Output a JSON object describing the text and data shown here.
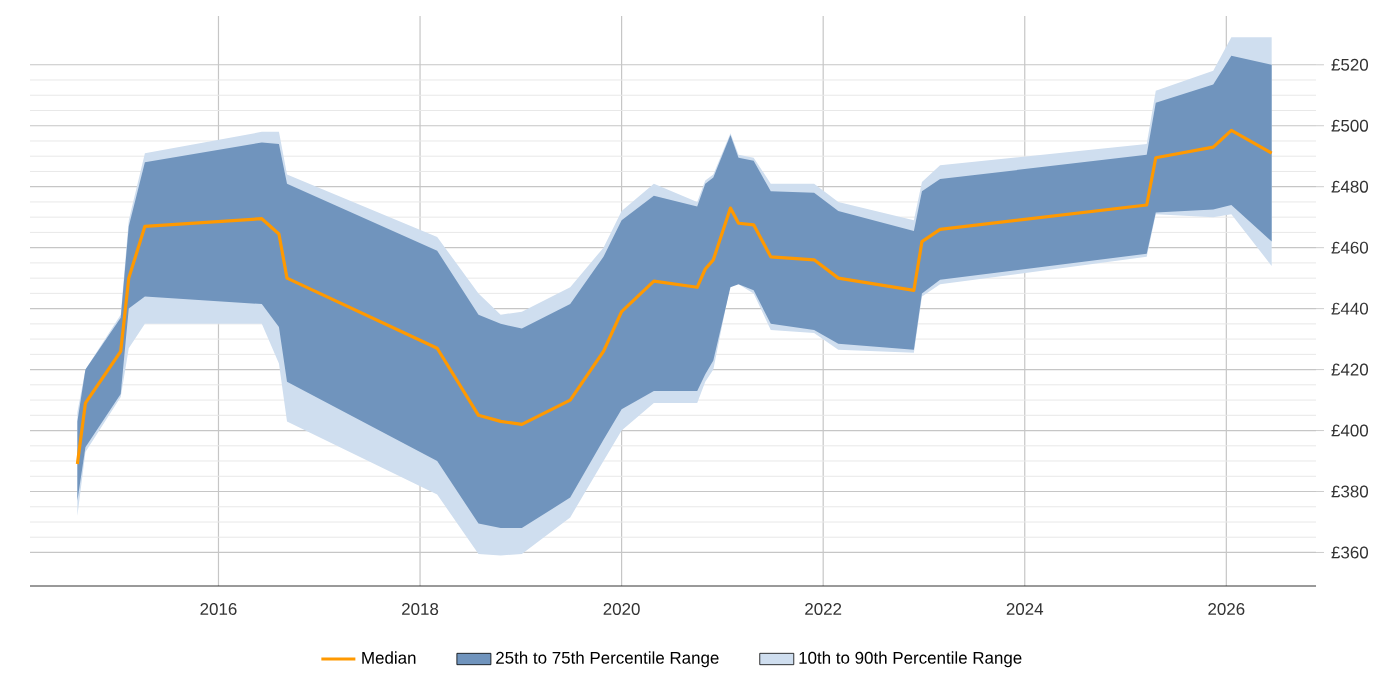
{
  "chart_data": {
    "type": "line",
    "x": [
      2014.6,
      2014.68,
      2015.03,
      2015.11,
      2015.27,
      2016.43,
      2016.6,
      2016.68,
      2018.17,
      2018.58,
      2018.8,
      2019.01,
      2019.49,
      2019.82,
      2020.0,
      2020.32,
      2020.75,
      2020.83,
      2020.91,
      2021.08,
      2021.16,
      2021.31,
      2021.48,
      2021.91,
      2022.15,
      2022.9,
      2022.98,
      2023.16,
      2025.21,
      2025.3,
      2025.87,
      2026.05,
      2026.45
    ],
    "series": [
      {
        "name": "Median",
        "type": "line",
        "color": "#ff9900",
        "values": [
          389,
          409,
          426,
          450,
          467,
          469.5,
          464.5,
          450,
          427,
          405,
          403,
          402,
          410,
          426,
          439,
          449,
          447,
          453,
          456,
          473,
          468,
          467.5,
          457,
          456,
          450,
          446,
          462,
          466,
          474,
          489.5,
          493,
          498.5,
          491
        ]
      },
      {
        "name": "25th to 75th Percentile Range",
        "type": "area",
        "color": "#7094bd",
        "values": [
          null,
          null,
          null,
          null,
          null,
          null,
          null,
          null,
          null,
          null,
          null,
          null,
          null,
          null,
          null,
          null,
          null,
          null,
          null,
          null,
          null,
          null,
          null,
          null,
          null,
          null,
          null,
          null,
          null,
          null,
          null,
          null,
          null
        ],
        "lower": [
          377,
          394.5,
          412,
          440,
          444,
          441.5,
          434,
          416,
          390,
          369.5,
          368,
          368,
          378,
          397,
          407,
          413,
          413,
          418.5,
          423,
          447,
          448,
          446,
          435,
          433,
          428.5,
          426.5,
          445,
          449.5,
          458,
          471.5,
          472.5,
          474,
          462
        ],
        "upper": [
          403,
          420,
          437,
          467,
          488,
          494.5,
          494,
          481,
          459,
          438,
          435,
          433.5,
          441.5,
          457,
          469,
          477,
          473.5,
          481,
          483,
          497,
          489.5,
          488.5,
          478.5,
          478,
          472,
          465.5,
          478.5,
          482.5,
          490.5,
          507.5,
          513.5,
          523,
          520
        ]
      },
      {
        "name": "10th to 90th Percentile Range",
        "type": "area",
        "color": "#cfdeef",
        "values": [
          null,
          null,
          null,
          null,
          null,
          null,
          null,
          null,
          null,
          null,
          null,
          null,
          null,
          null,
          null,
          null,
          null,
          null,
          null,
          null,
          null,
          null,
          null,
          null,
          null,
          null,
          null,
          null,
          null,
          null,
          null,
          null,
          null
        ],
        "lower": [
          372,
          393,
          411,
          427,
          435,
          435,
          422,
          403,
          379,
          359.5,
          359,
          359.5,
          371.5,
          390,
          400,
          409,
          409,
          416,
          420,
          448,
          448,
          445,
          433,
          432,
          426.5,
          425.5,
          444,
          448,
          457,
          471,
          470,
          471,
          454
        ],
        "upper": [
          406,
          420,
          438,
          469,
          491,
          498,
          498,
          484,
          463.5,
          445,
          438,
          439,
          447,
          460,
          472,
          481,
          475,
          482,
          484,
          497.5,
          490.5,
          489.5,
          481,
          481,
          475,
          469,
          481.5,
          487,
          494,
          511.5,
          518,
          529,
          529
        ]
      }
    ],
    "xlim": [
      2014.13,
      2026.89
    ],
    "ylim": [
      349,
      536
    ],
    "xticks": [
      2016,
      2018,
      2020,
      2022,
      2024,
      2026
    ],
    "yticks": [
      {
        "value": 360,
        "label": "£360"
      },
      {
        "value": 380,
        "label": "£380"
      },
      {
        "value": 400,
        "label": "£400"
      },
      {
        "value": 420,
        "label": "£420"
      },
      {
        "value": 440,
        "label": "£440"
      },
      {
        "value": 460,
        "label": "£460"
      },
      {
        "value": 480,
        "label": "£480"
      },
      {
        "value": 500,
        "label": "£500"
      },
      {
        "value": 520,
        "label": "£520"
      }
    ],
    "grid": true,
    "legend": "bottom"
  }
}
